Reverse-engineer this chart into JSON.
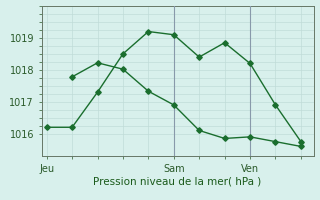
{
  "background_color": "#d8f0ec",
  "grid_color": "#c0dcd8",
  "line_color": "#1a6e2e",
  "line1_x": [
    0,
    1,
    2,
    3,
    4,
    5,
    6,
    7,
    8,
    9,
    10
  ],
  "line1_y": [
    1016.2,
    1016.2,
    1017.3,
    1018.5,
    1019.2,
    1019.1,
    1018.4,
    1018.85,
    1018.2,
    1016.9,
    1015.75
  ],
  "line2_x": [
    1,
    2,
    3,
    4,
    5,
    6,
    7,
    8,
    9,
    10
  ],
  "line2_y": [
    1017.78,
    1018.22,
    1018.02,
    1017.33,
    1016.9,
    1016.1,
    1015.85,
    1015.9,
    1015.75,
    1015.6
  ],
  "xtick_positions": [
    0,
    5,
    8
  ],
  "xtick_labels": [
    "Jeu",
    "Sam",
    "Ven"
  ],
  "ytick_positions": [
    1016,
    1017,
    1018,
    1019
  ],
  "ytick_labels": [
    "1016",
    "1017",
    "1018",
    "1019"
  ],
  "xlabel": "Pression niveau de la mer( hPa )",
  "ylim": [
    1015.3,
    1019.7
  ],
  "xlim": [
    -0.2,
    10.5
  ],
  "vline_x": 5,
  "vline2_x": 8,
  "marker": "D",
  "markersize": 2.8
}
